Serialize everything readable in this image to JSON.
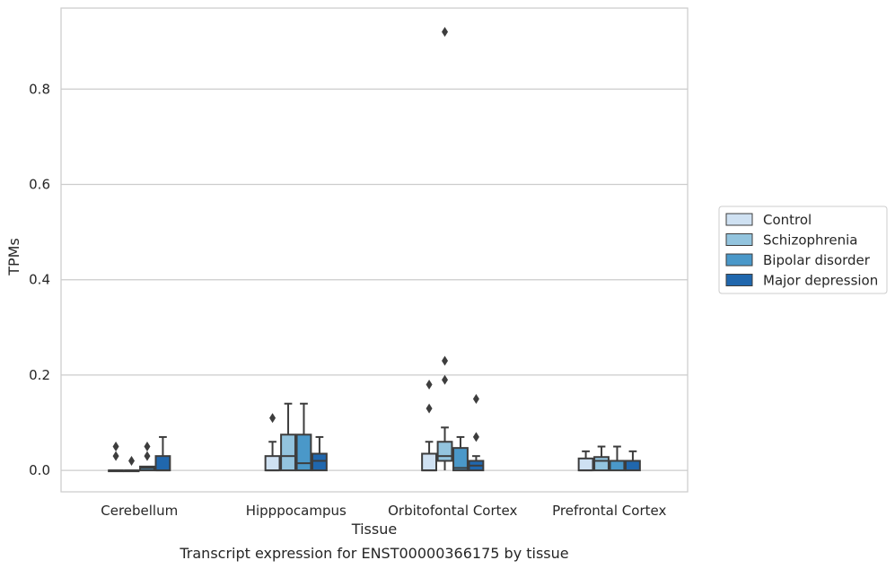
{
  "chart_data": {
    "type": "box",
    "caption": "Transcript expression for ENST00000366175 by tissue",
    "xlabel": "Tissue",
    "ylabel": "TPMs",
    "ylim": [
      -0.045,
      0.97
    ],
    "yticks": [
      0.0,
      0.2,
      0.4,
      0.6,
      0.8
    ],
    "ytick_labels": [
      "0.0",
      "0.2",
      "0.4",
      "0.6",
      "0.8"
    ],
    "grid": "horizontal",
    "legend_position": "right",
    "categories": [
      "Cerebellum",
      "Hipppocampus",
      "Orbitofontal Cortex",
      "Prefrontal Cortex"
    ],
    "series": [
      {
        "name": "Control",
        "color": "#cfe1f2",
        "boxes": [
          {
            "whislo": 0,
            "q1": 0,
            "med": 0,
            "q3": 0,
            "whishi": 0,
            "fliers": [
              0.03,
              0.05
            ]
          },
          {
            "whislo": 0,
            "q1": 0,
            "med": 0,
            "q3": 0.03,
            "whishi": 0.06,
            "fliers": [
              0.11
            ]
          },
          {
            "whislo": 0,
            "q1": 0,
            "med": 0,
            "q3": 0.035,
            "whishi": 0.06,
            "fliers": [
              0.13,
              0.18
            ]
          },
          {
            "whislo": 0,
            "q1": 0,
            "med": 0,
            "q3": 0.025,
            "whishi": 0.04,
            "fliers": []
          }
        ]
      },
      {
        "name": "Schizophrenia",
        "color": "#93c4de",
        "boxes": [
          {
            "whislo": 0,
            "q1": 0,
            "med": 0,
            "q3": 0,
            "whishi": 0,
            "fliers": [
              0.02
            ]
          },
          {
            "whislo": 0,
            "q1": 0,
            "med": 0.03,
            "q3": 0.075,
            "whishi": 0.14,
            "fliers": []
          },
          {
            "whislo": 0,
            "q1": 0.02,
            "med": 0.03,
            "q3": 0.06,
            "whishi": 0.09,
            "fliers": [
              0.19,
              0.23,
              0.92
            ]
          },
          {
            "whislo": 0,
            "q1": 0,
            "med": 0.02,
            "q3": 0.028,
            "whishi": 0.05,
            "fliers": []
          }
        ]
      },
      {
        "name": "Bipolar disorder",
        "color": "#4a98c9",
        "boxes": [
          {
            "whislo": 0,
            "q1": 0,
            "med": 0.005,
            "q3": 0.008,
            "whishi": 0.008,
            "fliers": [
              0.03,
              0.05
            ]
          },
          {
            "whislo": 0,
            "q1": 0,
            "med": 0.015,
            "q3": 0.075,
            "whishi": 0.14,
            "fliers": []
          },
          {
            "whislo": 0,
            "q1": 0,
            "med": 0.005,
            "q3": 0.047,
            "whishi": 0.07,
            "fliers": []
          },
          {
            "whislo": 0,
            "q1": 0,
            "med": 0.02,
            "q3": 0.02,
            "whishi": 0.05,
            "fliers": []
          }
        ]
      },
      {
        "name": "Major depression",
        "color": "#2067ad",
        "boxes": [
          {
            "whislo": 0,
            "q1": 0,
            "med": 0,
            "q3": 0.03,
            "whishi": 0.07,
            "fliers": []
          },
          {
            "whislo": 0,
            "q1": 0,
            "med": 0.02,
            "q3": 0.035,
            "whishi": 0.07,
            "fliers": []
          },
          {
            "whislo": 0,
            "q1": 0,
            "med": 0.01,
            "q3": 0.02,
            "whishi": 0.03,
            "fliers": [
              0.07,
              0.15
            ]
          },
          {
            "whislo": 0,
            "q1": 0,
            "med": 0.02,
            "q3": 0.02,
            "whishi": 0.04,
            "fliers": []
          }
        ]
      }
    ]
  }
}
